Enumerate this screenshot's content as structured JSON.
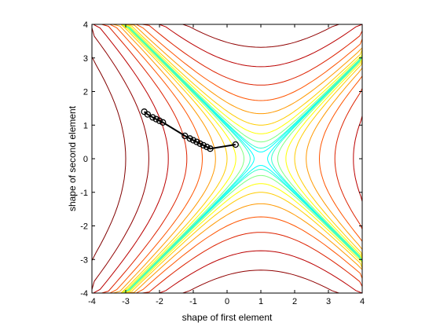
{
  "chart_data": {
    "type": "contour",
    "title": "",
    "xlabel": "shape of first element",
    "ylabel": "shape of second element",
    "xlim": [
      -4,
      4
    ],
    "ylim": [
      -4,
      4
    ],
    "xticks": [
      "-4",
      "-3",
      "-2",
      "-1",
      "0",
      "1",
      "2",
      "3",
      "4"
    ],
    "yticks": [
      "-4",
      "-3",
      "-2",
      "-1",
      "0",
      "1",
      "2",
      "3",
      "4"
    ],
    "grid": false,
    "legend": "none",
    "colormap": "jet",
    "surface": "hyperbolic saddle centered at (1, 0), valleys along x+y=1 and x-y=1",
    "contour_colors": [
      "#00ffff",
      "#00ffcc",
      "#80ff80",
      "#ffff00",
      "#ffcc00",
      "#ff9900",
      "#ff6600",
      "#ee3300",
      "#cc1100",
      "#990000",
      "#800000"
    ],
    "path": {
      "marker": "open circle",
      "color": "#000000",
      "points": [
        [
          0.25,
          0.42
        ],
        [
          -0.5,
          0.3
        ],
        [
          -0.6,
          0.35
        ],
        [
          -0.7,
          0.4
        ],
        [
          -0.8,
          0.45
        ],
        [
          -0.9,
          0.5
        ],
        [
          -1.0,
          0.55
        ],
        [
          -1.1,
          0.6
        ],
        [
          -1.25,
          0.68
        ],
        [
          -1.9,
          1.08
        ],
        [
          -2.0,
          1.13
        ],
        [
          -2.1,
          1.18
        ],
        [
          -2.2,
          1.23
        ],
        [
          -2.35,
          1.32
        ],
        [
          -2.45,
          1.4
        ]
      ]
    }
  }
}
